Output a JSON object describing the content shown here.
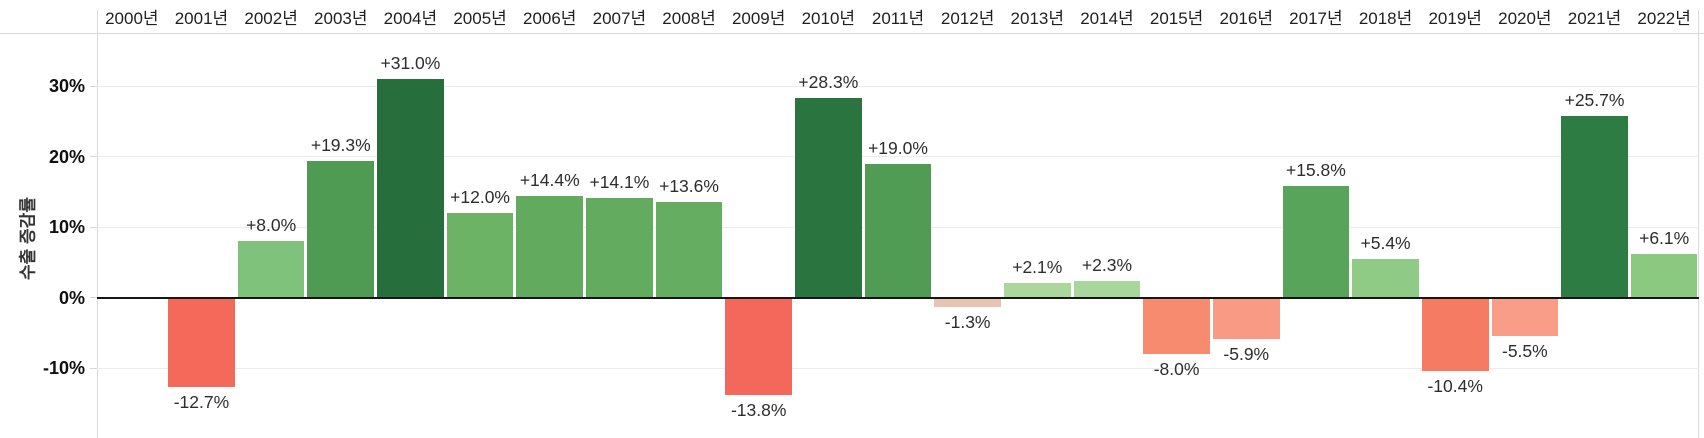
{
  "chart_data": {
    "type": "bar",
    "title": "",
    "xlabel": "",
    "ylabel": "수출 증감률",
    "categories": [
      "2000년",
      "2001년",
      "2002년",
      "2003년",
      "2004년",
      "2005년",
      "2006년",
      "2007년",
      "2008년",
      "2009년",
      "2010년",
      "2011년",
      "2012년",
      "2013년",
      "2014년",
      "2015년",
      "2016년",
      "2017년",
      "2018년",
      "2019년",
      "2020년",
      "2021년",
      "2022년"
    ],
    "values": [
      null,
      -12.7,
      8.0,
      19.3,
      31.0,
      12.0,
      14.4,
      14.1,
      13.6,
      -13.8,
      28.3,
      19.0,
      -1.3,
      2.1,
      2.3,
      -8.0,
      -5.9,
      15.8,
      5.4,
      -10.4,
      -5.5,
      25.7,
      6.1
    ],
    "labels": [
      "",
      "-12.7%",
      "+8.0%",
      "+19.3%",
      "+31.0%",
      "+12.0%",
      "+14.4%",
      "+14.1%",
      "+13.6%",
      "-13.8%",
      "+28.3%",
      "+19.0%",
      "-1.3%",
      "+2.1%",
      "+2.3%",
      "-8.0%",
      "-5.9%",
      "+15.8%",
      "+5.4%",
      "-10.4%",
      "-5.5%",
      "+25.7%",
      "+6.1%"
    ],
    "bar_colors": [
      null,
      "#f4695a",
      "#7fc27c",
      "#4f9b53",
      "#266e3c",
      "#6db366",
      "#62ab5e",
      "#63ab5e",
      "#65ad60",
      "#f3685a",
      "#2a7440",
      "#509c54",
      "#e5c4b3",
      "#abd79d",
      "#a9d69b",
      "#f78b70",
      "#f99a84",
      "#58a45b",
      "#8fcb84",
      "#f57b63",
      "#f99d88",
      "#2d7c44",
      "#8bc981"
    ],
    "y_ticks": [
      {
        "label": "30%",
        "value": 30
      },
      {
        "label": "20%",
        "value": 20
      },
      {
        "label": "10%",
        "value": 10
      },
      {
        "label": "0%",
        "value": 0
      },
      {
        "label": "-10%",
        "value": -10
      }
    ],
    "ylim": [
      -20,
      37.5
    ],
    "grid": true,
    "legend": "none",
    "positive_color_range": [
      "#abd79d",
      "#266e3c"
    ],
    "negative_color_range": [
      "#e5c4b3",
      "#f3685a"
    ]
  }
}
